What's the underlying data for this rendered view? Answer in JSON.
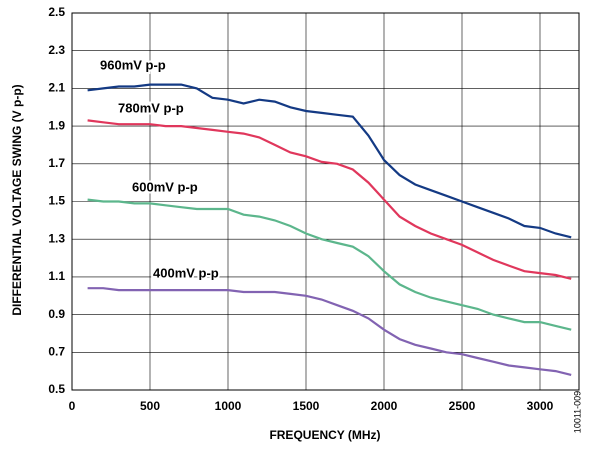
{
  "chart_data": {
    "type": "line",
    "x_label": "FREQUENCY (MHz)",
    "y_label": "DIFFERENTIAL VOLTAGE SWING (V p-p)",
    "figure_id": "10011-009",
    "x": [
      100,
      200,
      300,
      400,
      500,
      600,
      700,
      800,
      900,
      1000,
      1100,
      1200,
      1300,
      1400,
      1500,
      1600,
      1700,
      1800,
      1900,
      2000,
      2100,
      2200,
      2300,
      2400,
      2500,
      2600,
      2700,
      2800,
      2900,
      3000,
      3100,
      3200
    ],
    "series": [
      {
        "name": "960mV p-p",
        "color": "#143a84",
        "values": [
          2.09,
          2.1,
          2.11,
          2.11,
          2.12,
          2.12,
          2.12,
          2.1,
          2.05,
          2.04,
          2.02,
          2.04,
          2.03,
          2.0,
          1.98,
          1.97,
          1.96,
          1.95,
          1.85,
          1.72,
          1.64,
          1.59,
          1.56,
          1.53,
          1.5,
          1.47,
          1.44,
          1.41,
          1.37,
          1.36,
          1.33,
          1.31
        ]
      },
      {
        "name": "780mV p-p",
        "color": "#e0375c",
        "values": [
          1.93,
          1.92,
          1.91,
          1.91,
          1.91,
          1.9,
          1.9,
          1.89,
          1.88,
          1.87,
          1.86,
          1.84,
          1.8,
          1.76,
          1.74,
          1.71,
          1.7,
          1.67,
          1.6,
          1.51,
          1.42,
          1.37,
          1.33,
          1.3,
          1.27,
          1.23,
          1.19,
          1.16,
          1.13,
          1.12,
          1.11,
          1.09
        ]
      },
      {
        "name": "600mV p-p",
        "color": "#5cb68c",
        "values": [
          1.51,
          1.5,
          1.5,
          1.49,
          1.49,
          1.48,
          1.47,
          1.46,
          1.46,
          1.46,
          1.43,
          1.42,
          1.4,
          1.37,
          1.33,
          1.3,
          1.28,
          1.26,
          1.21,
          1.13,
          1.06,
          1.02,
          0.99,
          0.97,
          0.95,
          0.93,
          0.9,
          0.88,
          0.86,
          0.86,
          0.84,
          0.82
        ]
      },
      {
        "name": "400mV p-p",
        "color": "#8263b2",
        "values": [
          1.04,
          1.04,
          1.03,
          1.03,
          1.03,
          1.03,
          1.03,
          1.03,
          1.03,
          1.03,
          1.02,
          1.02,
          1.02,
          1.01,
          1.0,
          0.98,
          0.95,
          0.92,
          0.88,
          0.82,
          0.77,
          0.74,
          0.72,
          0.7,
          0.69,
          0.67,
          0.65,
          0.63,
          0.62,
          0.61,
          0.6,
          0.58
        ]
      }
    ],
    "xlim": [
      0,
      3250
    ],
    "xticks": [
      0,
      500,
      1000,
      1500,
      2000,
      2500,
      3000
    ],
    "ylim": [
      0.5,
      2.5
    ],
    "yticks": [
      0.5,
      0.7,
      0.9,
      1.1,
      1.3,
      1.5,
      1.7,
      1.9,
      2.1,
      2.3,
      2.5
    ],
    "grid": true
  }
}
